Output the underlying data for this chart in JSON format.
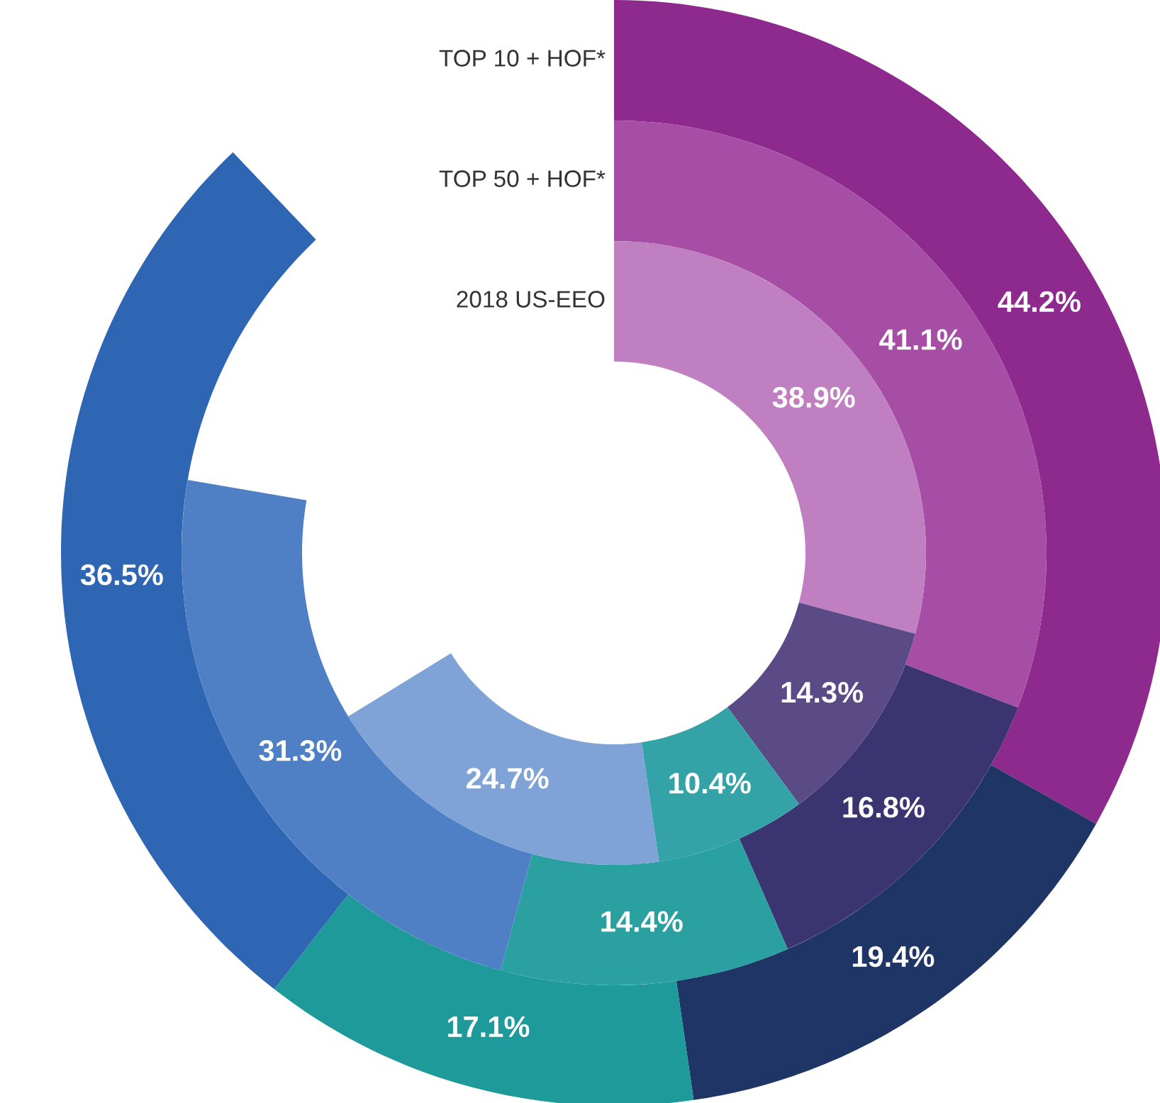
{
  "chart_data": {
    "type": "donut",
    "categories": [
      null,
      null,
      null,
      null
    ],
    "series": [
      {
        "name": "TOP 10 + HOF*",
        "values": [
          44.2,
          19.4,
          17.1,
          36.5
        ],
        "value_labels": [
          "44.2%",
          "19.4%",
          "17.1%",
          "36.5%"
        ],
        "colors": [
          "#8e2a8e",
          "#1f3566",
          "#1f9a9a",
          "#2f66b3"
        ]
      },
      {
        "name": "TOP 50 + HOF*",
        "values": [
          41.1,
          16.8,
          14.4,
          31.3
        ],
        "value_labels": [
          "41.1%",
          "16.8%",
          "14.4%",
          "31.3%"
        ],
        "colors": [
          "#a64ea6",
          "#3a3470",
          "#2aa0a0",
          "#4f7fc4"
        ]
      },
      {
        "name": "2018 US-EEO",
        "values": [
          38.9,
          14.3,
          10.4,
          24.7
        ],
        "value_labels": [
          "38.9%",
          "14.3%",
          "10.4%",
          "24.7%"
        ],
        "colors": [
          "#c07fc0",
          "#5a4a86",
          "#33a3a8",
          "#7fa3d6"
        ]
      }
    ],
    "legend": false
  }
}
